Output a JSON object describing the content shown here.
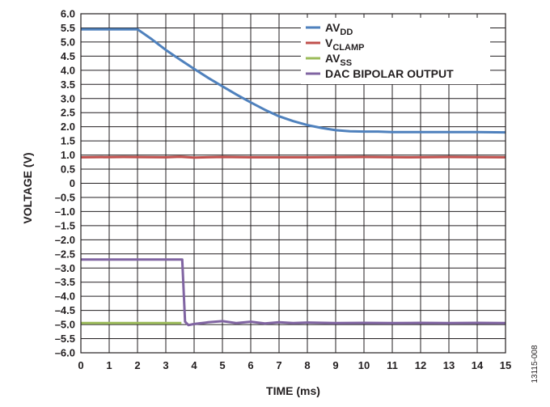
{
  "chart_data": {
    "type": "line",
    "xlabel": "TIME (ms)",
    "ylabel": "VOLTAGE (V)",
    "xlim": [
      0,
      15
    ],
    "ylim": [
      -6,
      6
    ],
    "x_ticks": [
      0,
      1,
      2,
      3,
      4,
      5,
      6,
      7,
      8,
      9,
      10,
      11,
      12,
      13,
      14,
      15
    ],
    "y_ticks": [
      6.0,
      5.5,
      5.0,
      4.5,
      4.0,
      3.5,
      3.0,
      2.5,
      2.0,
      1.5,
      1.0,
      0.5,
      0,
      -0.5,
      -1.0,
      -1.5,
      -2.0,
      -2.5,
      -3.0,
      -3.5,
      -4.0,
      -4.5,
      -5.0,
      -5.5,
      -6.0
    ],
    "y_tick_labels": [
      "6.0",
      "5.5",
      "5.0",
      "4.5",
      "4.0",
      "3.5",
      "3.0",
      "2.5",
      "2.0",
      "1.5",
      "1.0",
      "0.5",
      "0",
      "–0.5",
      "–1.0",
      "–1.5",
      "–2.0",
      "–2.5",
      "–3.0",
      "–3.5",
      "–4.0",
      "–4.5",
      "–5.0",
      "–5.5",
      "–6.0"
    ],
    "grid": true,
    "legend_position": "top-right",
    "series": [
      {
        "name": "AVDD",
        "name_main": "AV",
        "name_sub": "DD",
        "color": "#4f81bd",
        "points": [
          [
            0,
            5.45
          ],
          [
            2.0,
            5.45
          ],
          [
            2.5,
            5.1
          ],
          [
            3.0,
            4.72
          ],
          [
            3.5,
            4.38
          ],
          [
            4.0,
            4.05
          ],
          [
            4.5,
            3.73
          ],
          [
            5.0,
            3.43
          ],
          [
            5.5,
            3.14
          ],
          [
            6.0,
            2.86
          ],
          [
            6.5,
            2.6
          ],
          [
            7.0,
            2.37
          ],
          [
            7.5,
            2.2
          ],
          [
            8.0,
            2.06
          ],
          [
            8.5,
            1.96
          ],
          [
            9.0,
            1.88
          ],
          [
            9.5,
            1.84
          ],
          [
            10.0,
            1.83
          ],
          [
            10.5,
            1.83
          ],
          [
            11.0,
            1.81
          ],
          [
            12.0,
            1.81
          ],
          [
            13.0,
            1.81
          ],
          [
            14.0,
            1.81
          ],
          [
            15.0,
            1.8
          ]
        ]
      },
      {
        "name": "VCLAMP",
        "name_main": "V",
        "name_sub": "CLAMP",
        "color": "#c0504d",
        "points": [
          [
            0,
            0.92
          ],
          [
            1.5,
            0.93
          ],
          [
            3.0,
            0.92
          ],
          [
            3.5,
            0.94
          ],
          [
            4.0,
            0.91
          ],
          [
            5.0,
            0.93
          ],
          [
            6.0,
            0.92
          ],
          [
            8.0,
            0.92
          ],
          [
            10.0,
            0.93
          ],
          [
            11.5,
            0.92
          ],
          [
            13.0,
            0.93
          ],
          [
            15.0,
            0.92
          ]
        ]
      },
      {
        "name": "AVSS",
        "name_main": "AV",
        "name_sub": "SS",
        "color": "#9bbb59",
        "points": [
          [
            0,
            -4.95
          ],
          [
            3.55,
            -4.95
          ]
        ]
      },
      {
        "name": "DAC BIPOLAR OUTPUT",
        "name_main": "DAC BIPOLAR OUTPUT",
        "name_sub": "",
        "color": "#8064a2",
        "points": [
          [
            0,
            -2.7
          ],
          [
            3.58,
            -2.7
          ],
          [
            3.68,
            -4.9
          ],
          [
            3.8,
            -5.02
          ],
          [
            4.0,
            -4.98
          ],
          [
            4.5,
            -4.92
          ],
          [
            5.0,
            -4.88
          ],
          [
            5.5,
            -4.95
          ],
          [
            6.0,
            -4.9
          ],
          [
            6.5,
            -4.96
          ],
          [
            7.0,
            -4.92
          ],
          [
            7.5,
            -4.95
          ],
          [
            8.0,
            -4.93
          ],
          [
            9.0,
            -4.95
          ],
          [
            10.0,
            -4.94
          ],
          [
            11.0,
            -4.95
          ],
          [
            12.0,
            -4.94
          ],
          [
            13.0,
            -4.95
          ],
          [
            14.0,
            -4.94
          ],
          [
            15.0,
            -4.95
          ]
        ]
      }
    ]
  },
  "figure_code": "13115-008"
}
